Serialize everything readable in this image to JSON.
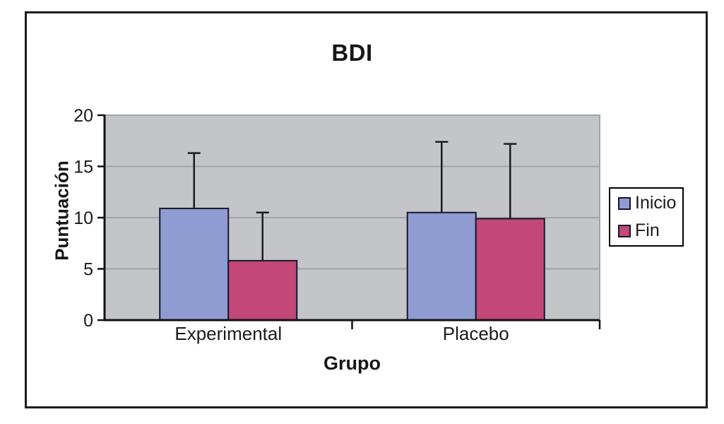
{
  "figure": {
    "border_color": "#1d1d1f",
    "background": "#ffffff"
  },
  "chart_data": {
    "type": "bar",
    "title": "BDI",
    "xlabel": "Grupo",
    "ylabel": "Puntuación",
    "categories": [
      "Experimental",
      "Placebo"
    ],
    "series": [
      {
        "name": "Inicio",
        "color": "#8f9cd1",
        "values": [
          10.9,
          10.5
        ],
        "error_plus": [
          5.4,
          6.9
        ]
      },
      {
        "name": "Fin",
        "color": "#c34878",
        "values": [
          5.8,
          9.9
        ],
        "error_plus": [
          4.7,
          7.3
        ]
      }
    ],
    "ylim": [
      0,
      20
    ],
    "yticks": [
      0,
      5,
      10,
      15,
      20
    ],
    "grid": true,
    "legend_position": "right",
    "plot_bg": "#c3c5c8",
    "gridline_color": "#a0a4a8",
    "axis_color": "#111111",
    "bar_border_color": "#16162c",
    "error_bar_color": "#1c1c1c",
    "text_color": "#1a1a1a"
  }
}
